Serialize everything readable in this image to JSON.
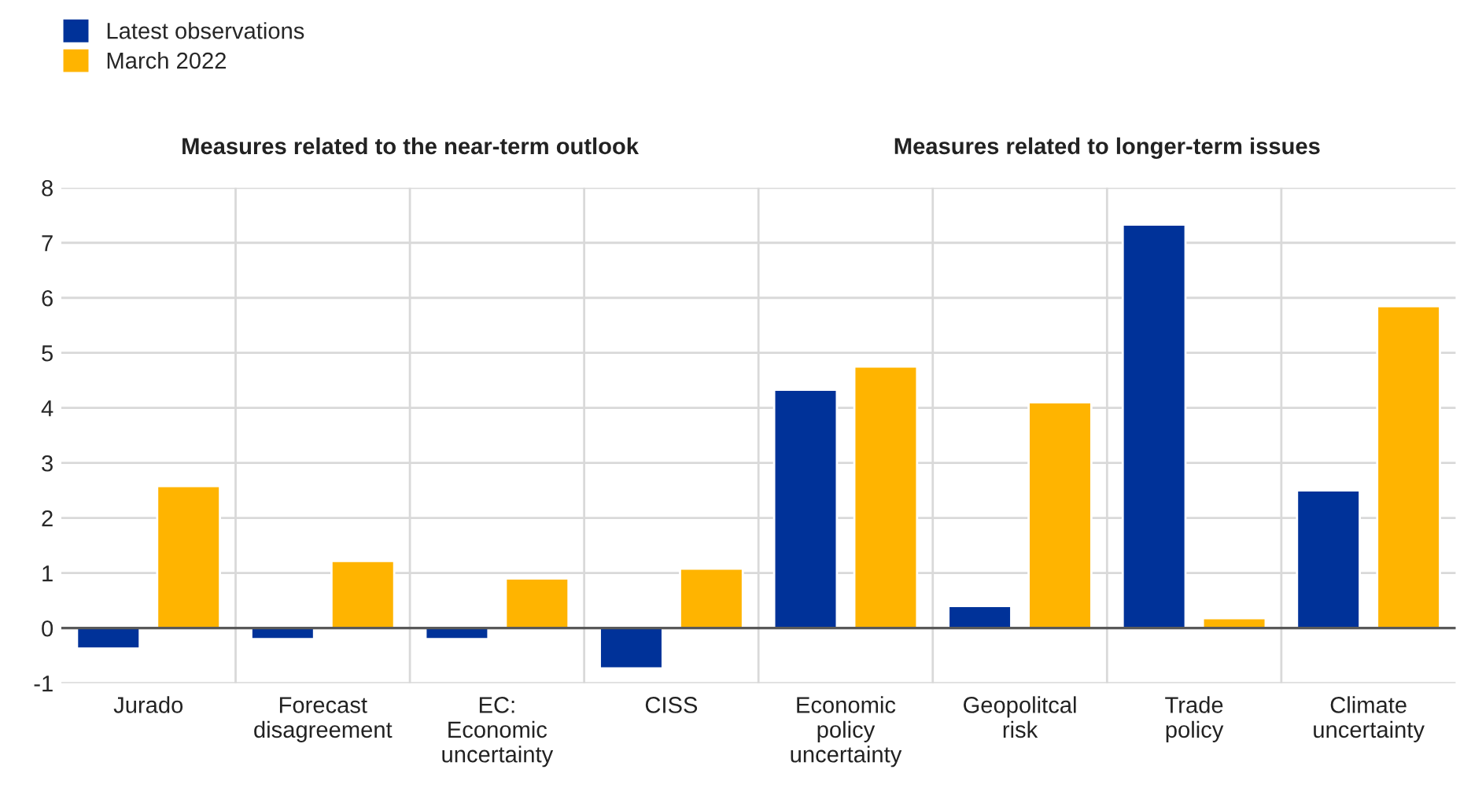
{
  "chart_data": {
    "type": "bar",
    "categories": [
      "Jurado",
      "Forecast\ndisagreement",
      "EC:\nEconomic\nuncertainty",
      "CISS",
      "Economic\npolicy\nuncertainty",
      "Geopolitcal\nrisk",
      "Trade\npolicy",
      "Climate\nuncertainty"
    ],
    "series": [
      {
        "name": "Latest observations",
        "color": "#003299",
        "values": [
          -0.37,
          -0.2,
          -0.2,
          -0.73,
          4.33,
          0.4,
          7.33,
          2.5
        ]
      },
      {
        "name": "March 2022",
        "color": "#ffb400",
        "values": [
          2.58,
          1.22,
          0.9,
          1.08,
          4.75,
          4.1,
          0.18,
          5.85
        ]
      }
    ],
    "ylim": [
      -1,
      8
    ],
    "yticks": [
      {
        "value": -1,
        "label": "-1"
      },
      0,
      1,
      2,
      3,
      4,
      5,
      6,
      7,
      8
    ],
    "annotations": [
      "Measures related to the near-term outlook",
      "Measures related to longer-term issues"
    ],
    "grid": true,
    "legend": "top left"
  }
}
